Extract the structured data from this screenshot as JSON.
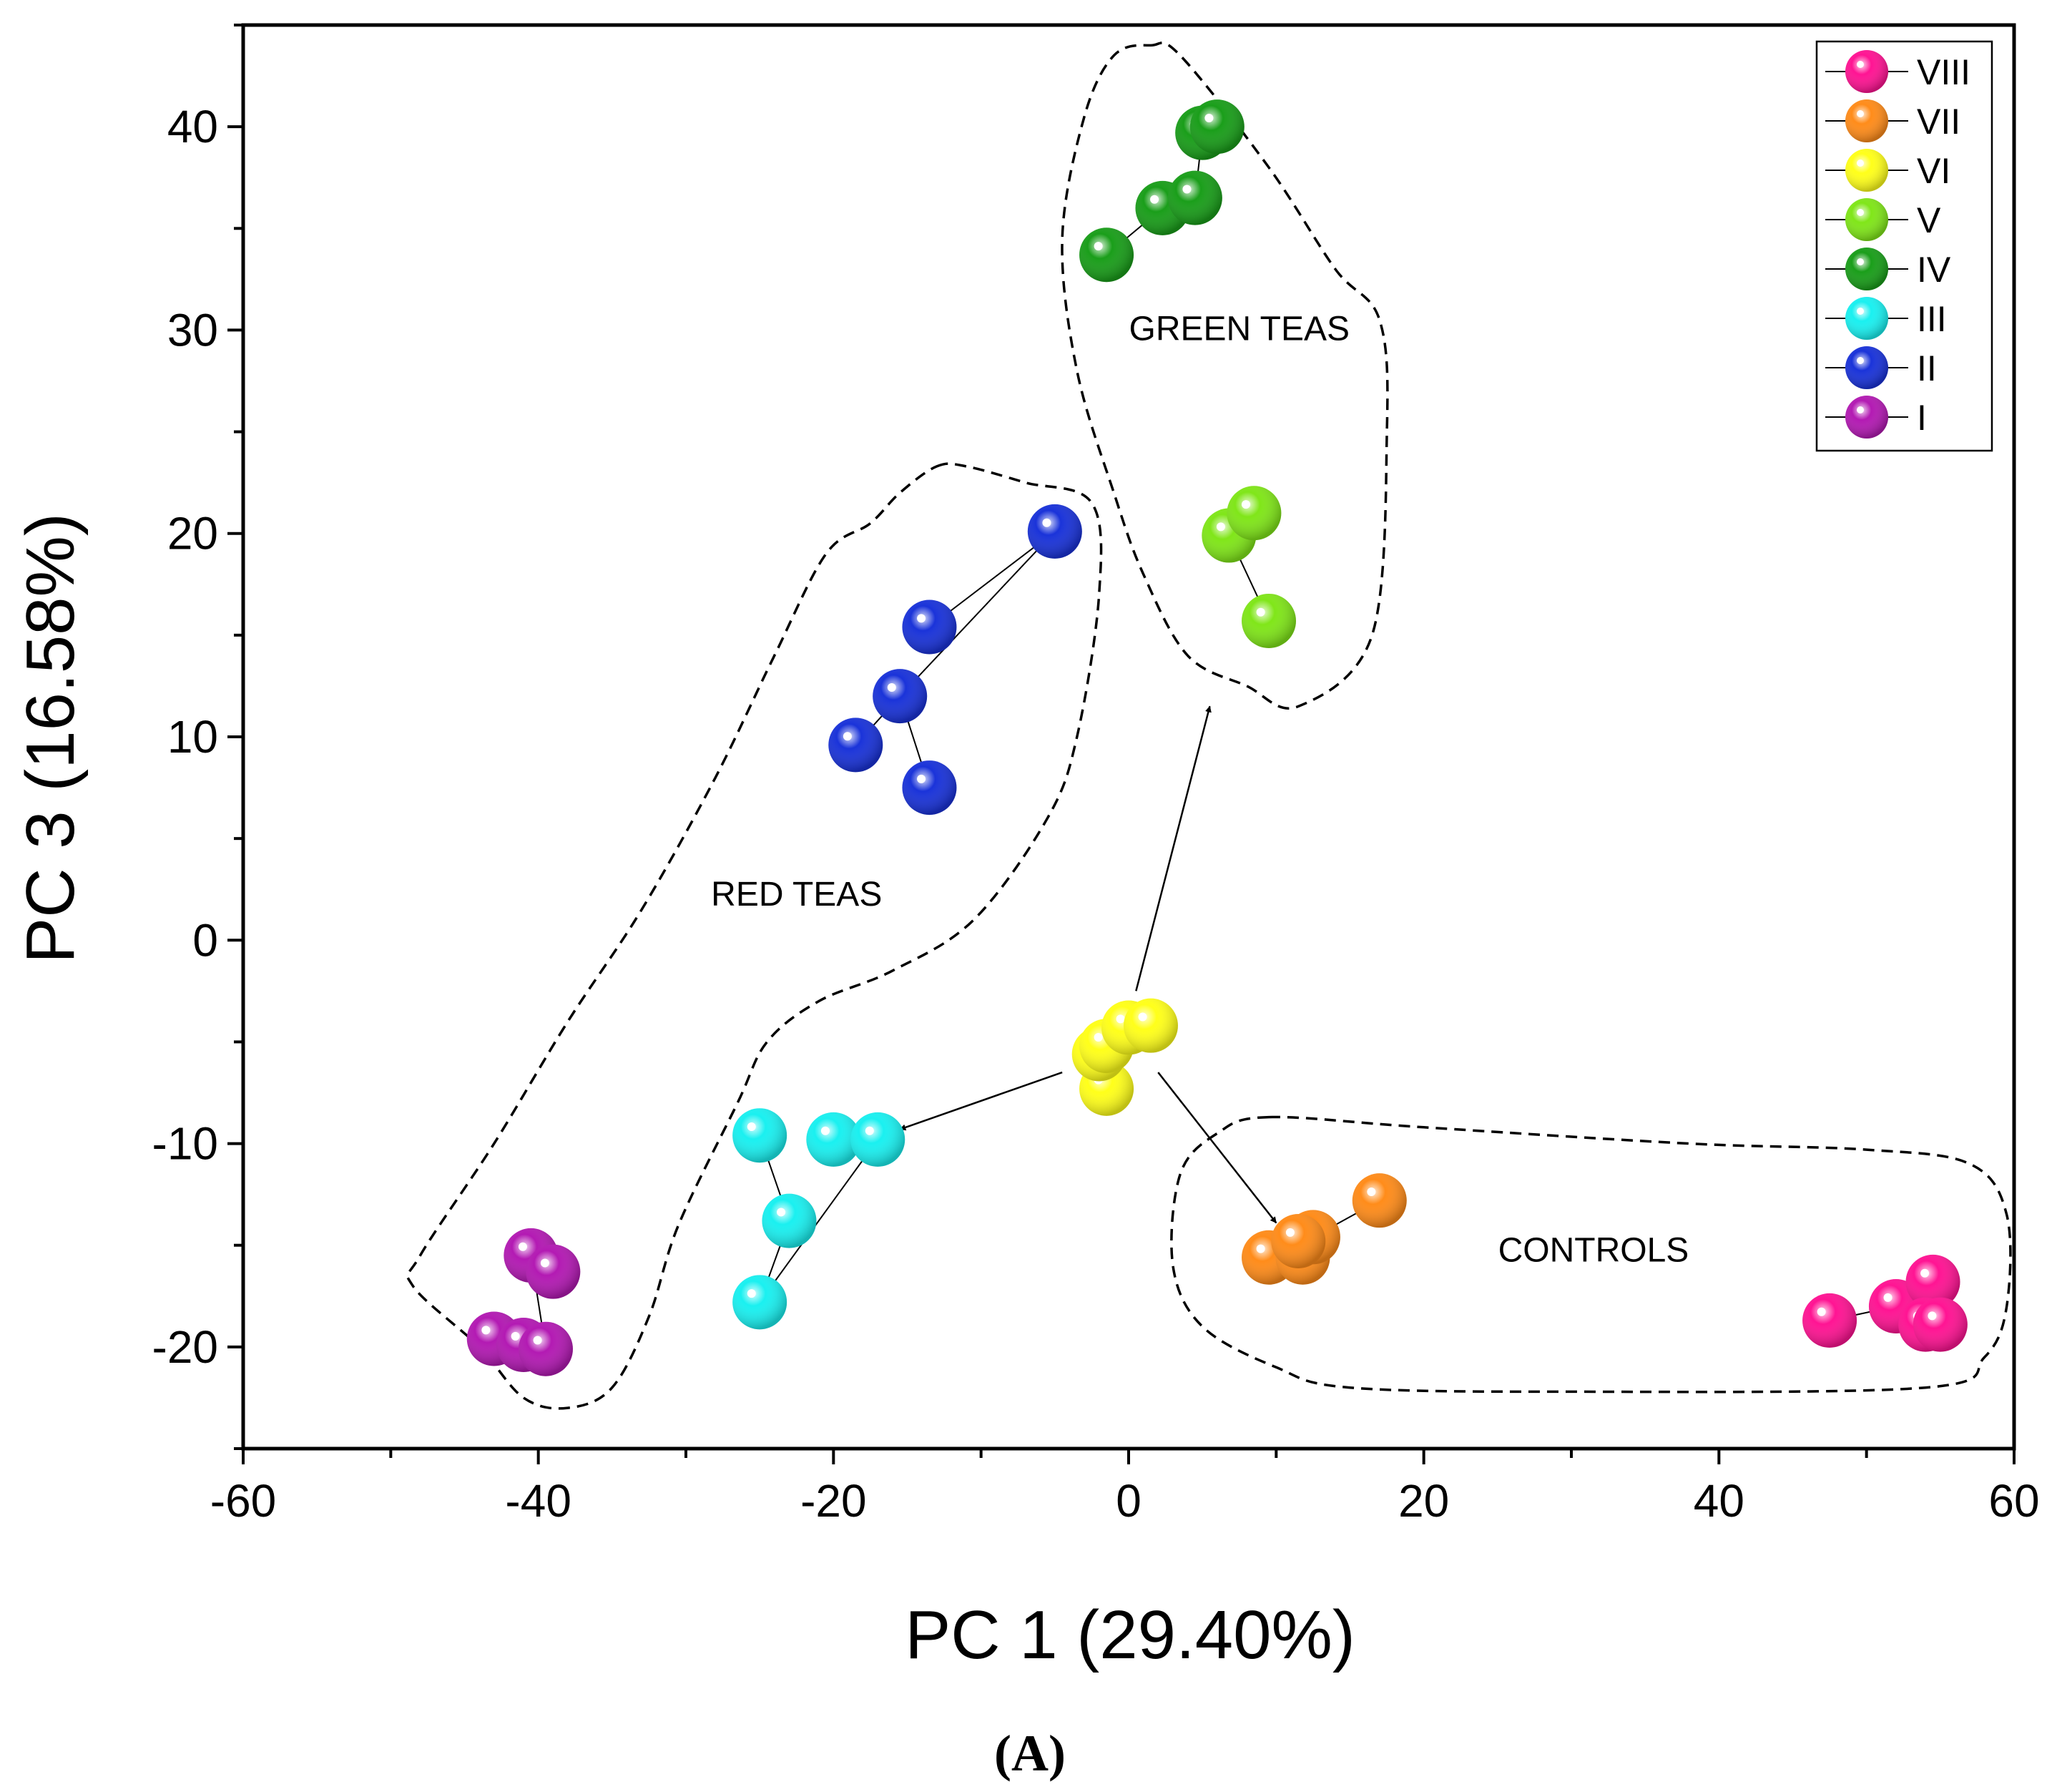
{
  "chart_data": {
    "type": "scatter",
    "xlabel": "PC 1 (29.40%)",
    "ylabel": "PC 3 (16.58%)",
    "xlim": [
      -60,
      60
    ],
    "ylim": [
      -25,
      45
    ],
    "xticks": [
      -60,
      -40,
      -20,
      0,
      20,
      40,
      60
    ],
    "yticks": [
      -20,
      -10,
      0,
      10,
      20,
      30,
      40
    ],
    "caption": "(A)",
    "series": [
      {
        "name": "VIII",
        "color": "#ff1493",
        "points": [
          [
            47.5,
            -18.7
          ],
          [
            52,
            -18
          ],
          [
            54.5,
            -16.8
          ],
          [
            54,
            -18.9
          ],
          [
            55,
            -18.9
          ]
        ],
        "links": [
          [
            0,
            1
          ],
          [
            1,
            2
          ],
          [
            1,
            3
          ],
          [
            2,
            4
          ]
        ]
      },
      {
        "name": "VII",
        "color": "#ff8c1a",
        "points": [
          [
            9.5,
            -15.6
          ],
          [
            11.8,
            -15.6
          ],
          [
            12.5,
            -14.6
          ],
          [
            17,
            -12.8
          ],
          [
            11.5,
            -14.8
          ]
        ],
        "links": [
          [
            0,
            2
          ],
          [
            2,
            3
          ],
          [
            1,
            4
          ]
        ]
      },
      {
        "name": "VI",
        "color": "#ffff1a",
        "points": [
          [
            -1.5,
            -7.3
          ],
          [
            -2,
            -5.6
          ],
          [
            -1.5,
            -5.2
          ],
          [
            0,
            -4.3
          ],
          [
            1.5,
            -4.2
          ]
        ],
        "links": [
          [
            0,
            1
          ],
          [
            1,
            3
          ],
          [
            3,
            4
          ]
        ]
      },
      {
        "name": "V",
        "color": "#80e619",
        "points": [
          [
            6.8,
            19.9
          ],
          [
            8.5,
            21
          ],
          [
            9.5,
            15.7
          ]
        ],
        "links": [
          [
            0,
            2
          ]
        ]
      },
      {
        "name": "IV",
        "color": "#1a9e1a",
        "points": [
          [
            -1.5,
            33.7
          ],
          [
            2.3,
            36
          ],
          [
            4.5,
            36.5
          ],
          [
            5,
            39.7
          ],
          [
            6,
            40
          ]
        ],
        "links": [
          [
            0,
            1
          ],
          [
            2,
            3
          ],
          [
            3,
            4
          ]
        ]
      },
      {
        "name": "III",
        "color": "#1af0f0",
        "points": [
          [
            -25,
            -9.6
          ],
          [
            -20,
            -9.8
          ],
          [
            -17,
            -9.8
          ],
          [
            -23,
            -13.8
          ],
          [
            -25,
            -17.8
          ]
        ],
        "links": [
          [
            0,
            3
          ],
          [
            3,
            4
          ],
          [
            4,
            2
          ],
          [
            1,
            2
          ]
        ]
      },
      {
        "name": "II",
        "color": "#1a33d9",
        "points": [
          [
            -5,
            20.1
          ],
          [
            -13.5,
            15.4
          ],
          [
            -15.5,
            12
          ],
          [
            -18.5,
            9.6
          ],
          [
            -13.5,
            7.5
          ]
        ],
        "links": [
          [
            0,
            1
          ],
          [
            0,
            2
          ],
          [
            2,
            3
          ],
          [
            2,
            4
          ]
        ]
      },
      {
        "name": "I",
        "color": "#b31ab3",
        "points": [
          [
            -40.5,
            -15.5
          ],
          [
            -39,
            -16.3
          ],
          [
            -43,
            -19.6
          ],
          [
            -41,
            -19.9
          ],
          [
            -39.5,
            -20.1
          ]
        ],
        "links": [
          [
            0,
            1
          ],
          [
            2,
            3
          ],
          [
            3,
            4
          ],
          [
            0,
            4
          ]
        ]
      }
    ],
    "annotations": [
      {
        "text": "GREEN TEAS",
        "x": 7.5,
        "y": 29.5
      },
      {
        "text": "RED TEAS",
        "x": -22.5,
        "y": 1.7
      },
      {
        "text": "CONTROLS",
        "x": 31.5,
        "y": -15.8
      }
    ],
    "arrows": [
      {
        "from": [
          0.5,
          -2.5
        ],
        "to": [
          5.5,
          11.5
        ]
      },
      {
        "from": [
          -4.5,
          -6.5
        ],
        "to": [
          -15.5,
          -9.3
        ]
      },
      {
        "from": [
          2,
          -6.5
        ],
        "to": [
          10,
          -13.9
        ]
      }
    ],
    "regions": [
      {
        "name": "GREEN TEAS",
        "path": [
          [
            1.5,
            44
          ],
          [
            3.5,
            43.5
          ],
          [
            9.5,
            38
          ],
          [
            14,
            33
          ],
          [
            17,
            30.5
          ],
          [
            17.5,
            25
          ],
          [
            16.5,
            15
          ],
          [
            11.5,
            11.5
          ],
          [
            8,
            12.5
          ],
          [
            4,
            14
          ],
          [
            1,
            18
          ],
          [
            -1,
            22
          ],
          [
            -3.5,
            28
          ],
          [
            -4.5,
            34.5
          ],
          [
            -3,
            40.5
          ],
          [
            -1,
            43.5
          ]
        ]
      },
      {
        "name": "RED TEAS",
        "path": [
          [
            -13,
            23.3
          ],
          [
            -11,
            23.3
          ],
          [
            -7,
            22.5
          ],
          [
            -2.5,
            21.5
          ],
          [
            -2,
            17
          ],
          [
            -3.5,
            10
          ],
          [
            -5.5,
            6
          ],
          [
            -10.5,
            1
          ],
          [
            -16,
            -1.5
          ],
          [
            -21,
            -3
          ],
          [
            -24.5,
            -5
          ],
          [
            -26.5,
            -8
          ],
          [
            -30.5,
            -14
          ],
          [
            -32.5,
            -18.5
          ],
          [
            -35,
            -22
          ],
          [
            -38,
            -23
          ],
          [
            -41,
            -22.5
          ],
          [
            -44,
            -20
          ],
          [
            -48.5,
            -17
          ],
          [
            -48,
            -15.5
          ],
          [
            -43,
            -10
          ],
          [
            -38,
            -4
          ],
          [
            -33,
            1.5
          ],
          [
            -28,
            8
          ],
          [
            -24,
            14
          ],
          [
            -20.5,
            19
          ],
          [
            -17.5,
            20.5
          ],
          [
            -15.5,
            22
          ]
        ]
      },
      {
        "name": "CONTROLS",
        "path": [
          [
            9.5,
            -8.7
          ],
          [
            20,
            -9.2
          ],
          [
            38,
            -10
          ],
          [
            50,
            -10.3
          ],
          [
            57,
            -11
          ],
          [
            59.5,
            -13.5
          ],
          [
            59.5,
            -18
          ],
          [
            58,
            -20.5
          ],
          [
            54,
            -22
          ],
          [
            30,
            -22.2
          ],
          [
            15,
            -22
          ],
          [
            10,
            -21
          ],
          [
            5,
            -19
          ],
          [
            3,
            -16
          ],
          [
            3.5,
            -11.5
          ],
          [
            6,
            -9.5
          ]
        ]
      }
    ]
  }
}
